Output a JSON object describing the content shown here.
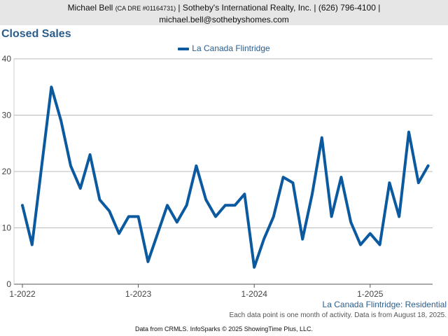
{
  "header": {
    "agent_name": "Michael Bell",
    "license": "(CA DRE #01164731)",
    "company_phone": "| Sotheby's International Realty, Inc. | (626) 796-4100 |",
    "email": "michael.bell@sothebyshomes.com"
  },
  "footer": {
    "series_caption": "La Canada Flintridge: Residential",
    "note": "Each data point is one month of activity. Data is from August 18, 2025.",
    "source": "Data from CRMLS. InfoSparks © 2025 ShowingTime Plus, LLC."
  },
  "colors": {
    "line": "#0b5aa0",
    "grid": "#bbbbbb",
    "title": "#2b5d8c"
  },
  "chart_data": {
    "type": "line",
    "title": "Closed Sales",
    "legend_position": "top-center",
    "grid": true,
    "ylim": [
      0,
      40
    ],
    "y_ticks": [
      0,
      10,
      20,
      30,
      40
    ],
    "x_ticks": [
      {
        "index": 0,
        "label": "1-2022"
      },
      {
        "index": 12,
        "label": "1-2023"
      },
      {
        "index": 24,
        "label": "1-2024"
      },
      {
        "index": 36,
        "label": "1-2025"
      }
    ],
    "series": [
      {
        "name": "La Canada Flintridge",
        "start": "2022-01",
        "values": [
          14,
          7,
          21,
          35,
          29,
          21,
          17,
          23,
          15,
          13,
          9,
          12,
          12,
          4,
          9,
          14,
          11,
          14,
          21,
          15,
          12,
          14,
          14,
          16,
          3,
          8,
          12,
          19,
          18,
          8,
          16,
          26,
          12,
          19,
          11,
          7,
          9,
          7,
          18,
          12,
          27,
          18,
          21
        ]
      }
    ]
  }
}
